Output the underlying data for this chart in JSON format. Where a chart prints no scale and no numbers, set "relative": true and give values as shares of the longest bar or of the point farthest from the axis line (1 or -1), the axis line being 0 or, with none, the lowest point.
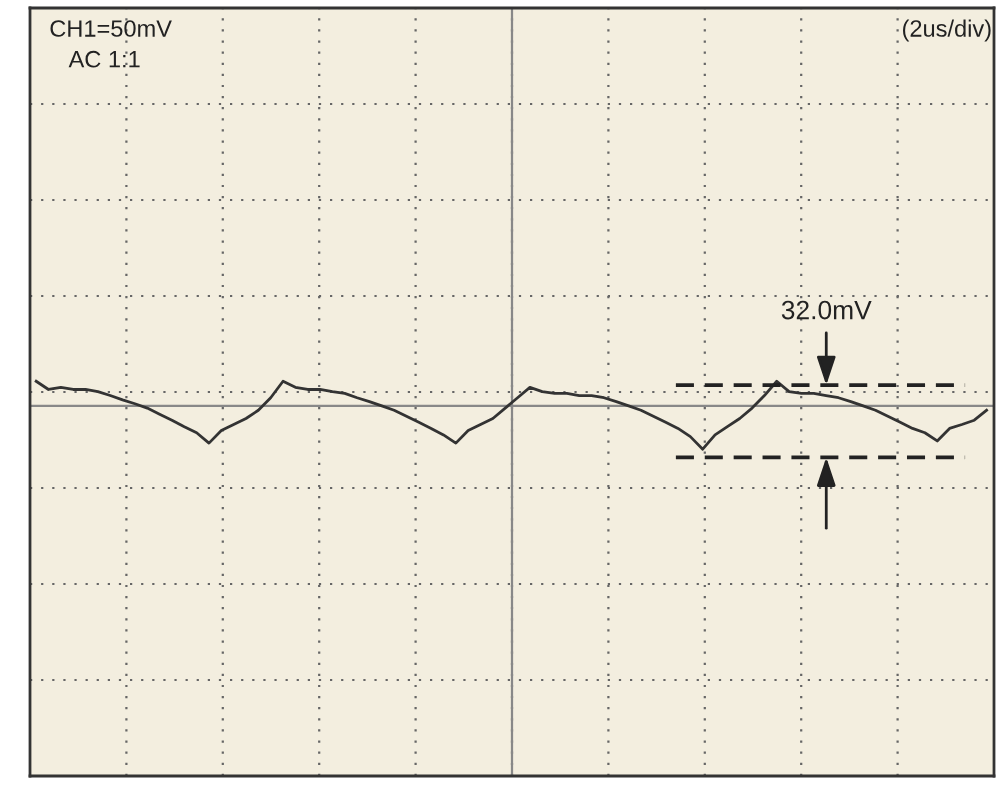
{
  "chart_data": {
    "type": "line",
    "relative": true,
    "grid": true,
    "marker": "none",
    "line_style": "solid",
    "annotations": [
      "CH1=50mV",
      "AC 1:1",
      "(2us/div)"
    ],
    "categories": [
      null,
      null,
      null,
      null,
      null,
      null,
      null,
      null,
      null,
      null,
      null,
      null,
      null,
      null,
      null,
      null,
      null,
      null,
      null,
      null,
      null,
      null,
      null,
      null,
      null,
      null,
      null,
      null,
      null,
      null,
      null,
      null,
      null,
      null,
      null,
      null,
      null,
      null,
      null,
      null,
      null,
      null,
      null,
      null,
      null,
      null,
      null,
      null,
      null,
      null,
      null,
      null,
      null,
      null,
      null,
      null,
      null,
      null,
      null,
      null,
      null,
      null,
      null,
      null,
      null,
      null,
      null,
      null,
      null,
      null,
      null,
      null,
      null,
      null,
      null,
      null,
      null,
      null
    ],
    "series": [
      {
        "color": "#333333",
        "values": [
          0.57,
          0.38,
          0.43,
          0.38,
          0.38,
          0.33,
          0.24,
          0.14,
          0.05,
          -0.05,
          -0.19,
          -0.33,
          -0.48,
          -0.62,
          -0.86,
          -0.57,
          -0.43,
          -0.29,
          -0.1,
          0.19,
          0.57,
          0.43,
          0.38,
          0.38,
          0.33,
          0.29,
          0.19,
          0.1,
          0,
          -0.1,
          -0.24,
          -0.38,
          -0.52,
          -0.67,
          -0.86,
          -0.57,
          -0.43,
          -0.29,
          -0.05,
          0.19,
          0.43,
          0.33,
          0.29,
          0.29,
          0.24,
          0.24,
          0.19,
          0.1,
          0,
          -0.1,
          -0.24,
          -0.38,
          -0.52,
          -0.71,
          -1,
          -0.67,
          -0.48,
          -0.29,
          -0.05,
          0.24,
          0.57,
          0.33,
          0.29,
          0.29,
          0.24,
          0.19,
          0.1,
          0,
          -0.1,
          -0.24,
          -0.38,
          -0.52,
          -0.62,
          -0.81,
          -0.52,
          -0.43,
          -0.33,
          -0.1
        ]
      }
    ],
    "ref_lines": [
      {
        "axis": "y",
        "value": 0.48,
        "label": "32.0mV",
        "line_style": "dashed",
        "color": "#222222"
      },
      {
        "axis": "y",
        "value": -1.19,
        "line_style": "dashed",
        "color": "#222222"
      }
    ]
  }
}
